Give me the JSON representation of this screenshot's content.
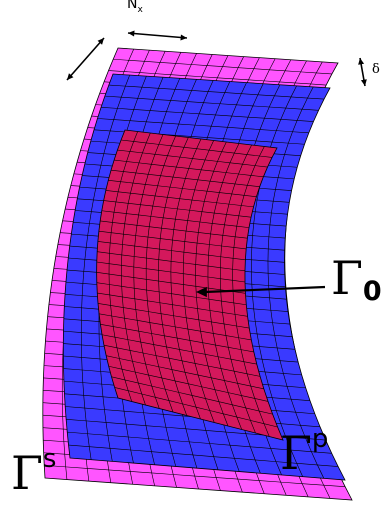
{
  "labels": {
    "nx_main": "N",
    "nx_sub": "x",
    "delta": "δ",
    "gamma_symbol": "Γ",
    "gamma0_sub": "0",
    "gammap_sup": "p",
    "gammas_sup": "s"
  },
  "colors": {
    "outer_surface": "#ff55ff",
    "middle_surface": "#3a3aff",
    "inner_surface": "#d4185c",
    "mesh_lines": "#000000"
  },
  "icons": [
    "double-arrow-icon",
    "double-arrow-icon",
    "double-arrow-icon",
    "arrow-icon"
  ]
}
